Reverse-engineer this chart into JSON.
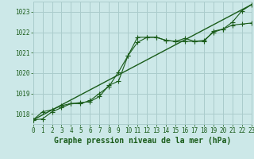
{
  "title": "Graphe pression niveau de la mer (hPa)",
  "bg_color": "#cce8e8",
  "grid_color": "#aacccc",
  "line_color": "#1a5c1a",
  "xlim": [
    0,
    23
  ],
  "ylim": [
    1017.5,
    1023.5
  ],
  "yticks": [
    1018,
    1019,
    1020,
    1021,
    1022,
    1023
  ],
  "xticks": [
    0,
    1,
    2,
    3,
    4,
    5,
    6,
    7,
    8,
    9,
    10,
    11,
    12,
    13,
    14,
    15,
    16,
    17,
    18,
    19,
    20,
    21,
    22,
    23
  ],
  "series1_x": [
    0,
    1,
    2,
    3,
    4,
    5,
    6,
    7,
    8,
    9,
    10,
    11,
    12,
    13,
    14,
    15,
    16,
    17,
    18,
    19,
    20,
    21,
    22,
    23
  ],
  "series1_y": [
    1017.7,
    1017.75,
    1018.1,
    1018.3,
    1018.5,
    1018.55,
    1018.6,
    1018.85,
    1019.4,
    1019.6,
    1020.85,
    1021.75,
    1021.75,
    1021.75,
    1021.6,
    1021.55,
    1021.7,
    1021.55,
    1021.55,
    1022.05,
    1022.15,
    1022.5,
    1023.05,
    1023.35
  ],
  "series2_x": [
    0,
    1,
    2,
    3,
    4,
    5,
    6,
    7,
    8,
    9,
    10,
    11,
    12,
    13,
    14,
    15,
    16,
    17,
    18,
    19,
    20,
    21,
    22,
    23
  ],
  "series2_y": [
    1017.7,
    1018.1,
    1018.2,
    1018.4,
    1018.5,
    1018.5,
    1018.65,
    1019.0,
    1019.35,
    1020.05,
    1020.85,
    1021.5,
    1021.75,
    1021.75,
    1021.6,
    1021.55,
    1021.55,
    1021.55,
    1021.6,
    1022.0,
    1022.15,
    1022.35,
    1022.4,
    1022.45
  ],
  "series3_x": [
    0,
    23
  ],
  "series3_y": [
    1017.7,
    1023.35
  ],
  "title_fontsize": 7,
  "tick_fontsize": 5.5
}
